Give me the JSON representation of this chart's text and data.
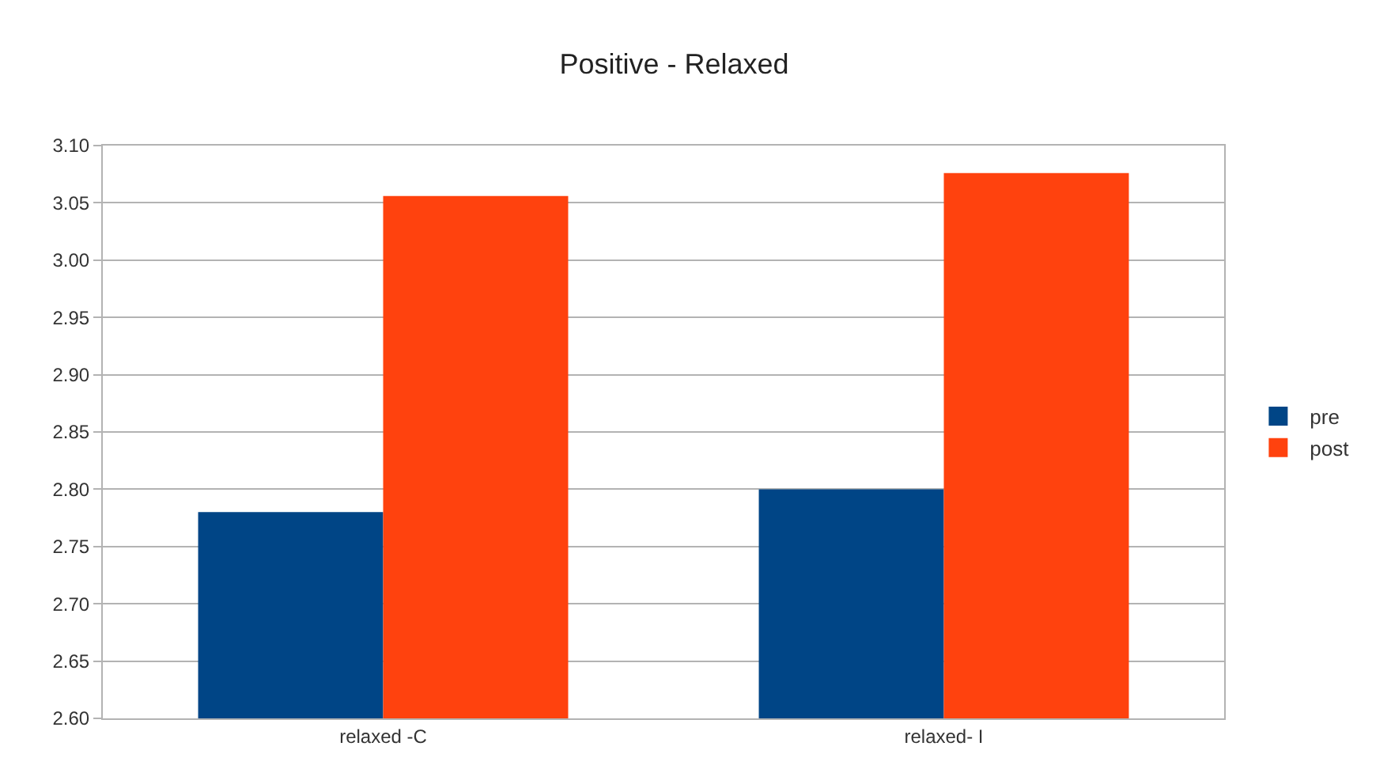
{
  "chart_data": {
    "type": "bar",
    "title": "Positive - Relaxed",
    "categories": [
      "relaxed -C",
      "relaxed- I"
    ],
    "series": [
      {
        "name": "pre",
        "color": "#004586",
        "values": [
          2.78,
          2.8
        ]
      },
      {
        "name": "post",
        "color": "#ff420e",
        "values": [
          3.056,
          3.076
        ]
      }
    ],
    "ylim": [
      2.6,
      3.1
    ],
    "yticks": [
      {
        "value": 2.6,
        "label": "2.60"
      },
      {
        "value": 2.65,
        "label": "2.65"
      },
      {
        "value": 2.7,
        "label": "2.70"
      },
      {
        "value": 2.75,
        "label": "2.75"
      },
      {
        "value": 2.8,
        "label": "2.80"
      },
      {
        "value": 2.85,
        "label": "2.85"
      },
      {
        "value": 2.9,
        "label": "2.90"
      },
      {
        "value": 2.95,
        "label": "2.95"
      },
      {
        "value": 3.0,
        "label": "3.00"
      },
      {
        "value": 3.05,
        "label": "3.05"
      },
      {
        "value": 3.1,
        "label": "3.10"
      }
    ],
    "grid": "y",
    "legend": "right"
  }
}
